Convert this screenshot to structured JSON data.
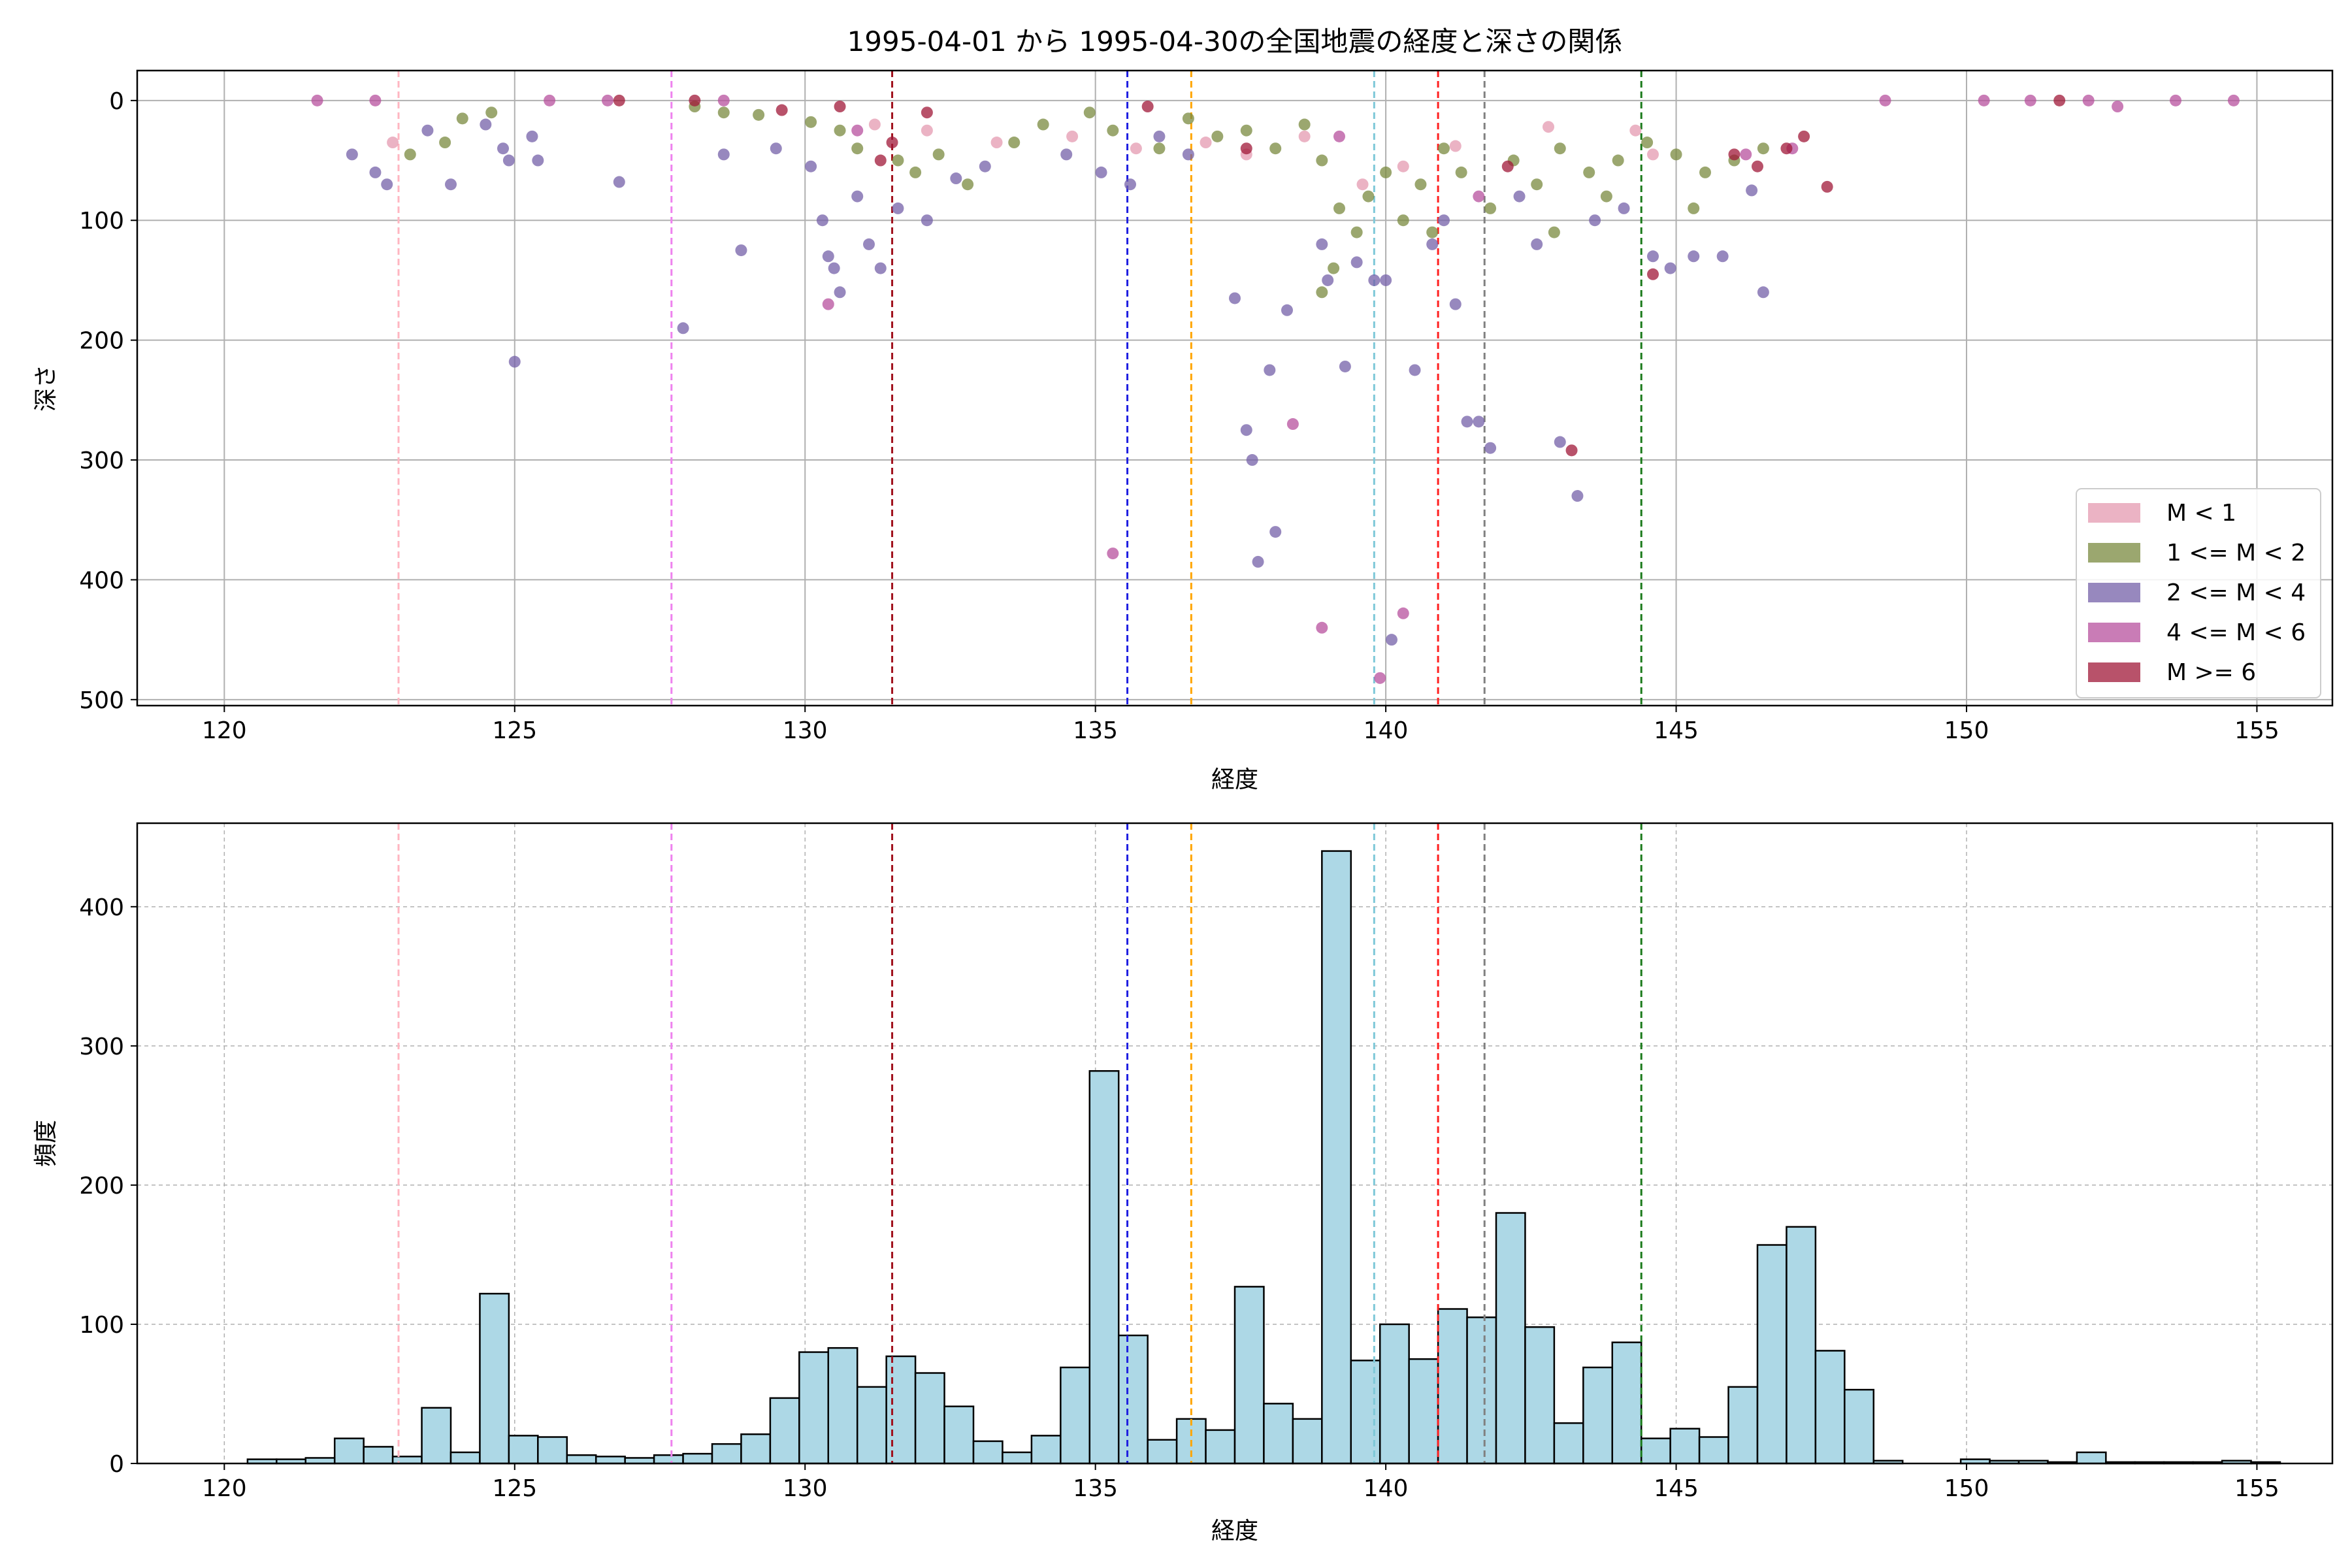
{
  "figure_title": "1995-04-01 から 1995-04-30の全国地震の経度と深さの関係",
  "colors": {
    "hist_fill": "#add8e6",
    "hist_edge": "#000000",
    "grid": "#b0b0b0"
  },
  "chart_data": [
    {
      "type": "scatter",
      "title": "1995-04-01 から 1995-04-30の全国地震の経度と深さの関係",
      "xlabel": "経度",
      "ylabel": "深さ",
      "xlim": [
        118.5,
        156.3
      ],
      "ylim": [
        505,
        -25
      ],
      "y_inverted": true,
      "xticks": [
        120,
        125,
        130,
        135,
        140,
        145,
        150,
        155
      ],
      "yticks": [
        0,
        100,
        200,
        300,
        400,
        500
      ],
      "grid": true,
      "legend_position": "lower-right",
      "vlines": [
        {
          "x": 123.0,
          "color": "#ffb6c1"
        },
        {
          "x": 127.7,
          "color": "#ee82ee"
        },
        {
          "x": 131.5,
          "color": "#a0101c"
        },
        {
          "x": 135.55,
          "color": "#1f1fe0"
        },
        {
          "x": 136.65,
          "color": "#ffa500"
        },
        {
          "x": 139.8,
          "color": "#7ec8d8"
        },
        {
          "x": 140.9,
          "color": "#ff2020"
        },
        {
          "x": 141.7,
          "color": "#808080"
        },
        {
          "x": 144.4,
          "color": "#1a7a1a"
        }
      ],
      "series": [
        {
          "name": "M < 1",
          "color": "#e49ab0",
          "points": [
            [
              122.9,
              35
            ],
            [
              131.2,
              20
            ],
            [
              132.1,
              25
            ],
            [
              134.6,
              30
            ],
            [
              135.7,
              40
            ],
            [
              136.9,
              35
            ],
            [
              137.6,
              45
            ],
            [
              139.6,
              70
            ],
            [
              140.3,
              55
            ],
            [
              141.2,
              38
            ],
            [
              142.8,
              22
            ],
            [
              144.3,
              25
            ],
            [
              144.6,
              45
            ],
            [
              133.3,
              35
            ],
            [
              138.6,
              30
            ]
          ]
        },
        {
          "name": "1 <= M < 2",
          "color": "#7a8a3f",
          "points": [
            [
              123.2,
              45
            ],
            [
              123.8,
              35
            ],
            [
              124.1,
              15
            ],
            [
              124.6,
              10
            ],
            [
              128.1,
              5
            ],
            [
              128.6,
              10
            ],
            [
              129.2,
              12
            ],
            [
              130.1,
              18
            ],
            [
              130.6,
              25
            ],
            [
              130.9,
              40
            ],
            [
              131.6,
              50
            ],
            [
              131.9,
              60
            ],
            [
              132.3,
              45
            ],
            [
              132.8,
              70
            ],
            [
              133.6,
              35
            ],
            [
              134.1,
              20
            ],
            [
              134.9,
              10
            ],
            [
              135.3,
              25
            ],
            [
              136.1,
              40
            ],
            [
              136.6,
              15
            ],
            [
              137.1,
              30
            ],
            [
              137.6,
              25
            ],
            [
              138.1,
              40
            ],
            [
              138.6,
              20
            ],
            [
              138.9,
              50
            ],
            [
              139.2,
              90
            ],
            [
              139.5,
              110
            ],
            [
              139.7,
              80
            ],
            [
              140.0,
              60
            ],
            [
              140.3,
              100
            ],
            [
              140.6,
              70
            ],
            [
              141.0,
              40
            ],
            [
              141.3,
              60
            ],
            [
              141.8,
              90
            ],
            [
              142.2,
              50
            ],
            [
              142.6,
              70
            ],
            [
              143.0,
              40
            ],
            [
              143.5,
              60
            ],
            [
              144.0,
              50
            ],
            [
              144.5,
              35
            ],
            [
              145.0,
              45
            ],
            [
              145.5,
              60
            ],
            [
              146.0,
              50
            ],
            [
              146.5,
              40
            ],
            [
              139.1,
              140
            ],
            [
              138.9,
              160
            ],
            [
              140.8,
              110
            ],
            [
              142.9,
              110
            ],
            [
              143.8,
              80
            ],
            [
              145.3,
              90
            ]
          ]
        },
        {
          "name": "2 <= M < 4",
          "color": "#7460a8",
          "points": [
            [
              122.2,
              45
            ],
            [
              122.6,
              60
            ],
            [
              122.8,
              70
            ],
            [
              123.5,
              25
            ],
            [
              123.9,
              70
            ],
            [
              124.5,
              20
            ],
            [
              124.8,
              40
            ],
            [
              124.9,
              50
            ],
            [
              125.0,
              218
            ],
            [
              125.3,
              30
            ],
            [
              125.4,
              50
            ],
            [
              126.8,
              68
            ],
            [
              127.9,
              190
            ],
            [
              128.6,
              45
            ],
            [
              128.9,
              125
            ],
            [
              129.5,
              40
            ],
            [
              130.1,
              55
            ],
            [
              130.3,
              100
            ],
            [
              130.4,
              130
            ],
            [
              130.5,
              140
            ],
            [
              130.6,
              160
            ],
            [
              130.9,
              80
            ],
            [
              131.1,
              120
            ],
            [
              131.3,
              140
            ],
            [
              131.6,
              90
            ],
            [
              132.1,
              100
            ],
            [
              132.6,
              65
            ],
            [
              133.1,
              55
            ],
            [
              134.5,
              45
            ],
            [
              135.1,
              60
            ],
            [
              135.6,
              70
            ],
            [
              136.1,
              30
            ],
            [
              136.6,
              45
            ],
            [
              137.6,
              275
            ],
            [
              137.7,
              300
            ],
            [
              138.0,
              225
            ],
            [
              138.1,
              360
            ],
            [
              138.3,
              175
            ],
            [
              138.9,
              120
            ],
            [
              139.0,
              150
            ],
            [
              139.3,
              222
            ],
            [
              139.8,
              150
            ],
            [
              140.1,
              450
            ],
            [
              140.5,
              225
            ],
            [
              140.8,
              120
            ],
            [
              141.0,
              100
            ],
            [
              141.4,
              268
            ],
            [
              141.6,
              268
            ],
            [
              141.8,
              290
            ],
            [
              142.3,
              80
            ],
            [
              142.6,
              120
            ],
            [
              143.0,
              285
            ],
            [
              143.3,
              330
            ],
            [
              143.6,
              100
            ],
            [
              144.1,
              90
            ],
            [
              144.6,
              130
            ],
            [
              144.9,
              140
            ],
            [
              145.3,
              130
            ],
            [
              145.8,
              130
            ],
            [
              146.3,
              75
            ],
            [
              146.5,
              160
            ],
            [
              137.4,
              165
            ],
            [
              137.8,
              385
            ],
            [
              139.5,
              135
            ],
            [
              140.0,
              150
            ],
            [
              141.2,
              170
            ]
          ]
        },
        {
          "name": "4 <= M < 6",
          "color": "#b7509d",
          "points": [
            [
              121.6,
              0
            ],
            [
              122.6,
              0
            ],
            [
              125.6,
              0
            ],
            [
              126.6,
              0
            ],
            [
              128.6,
              0
            ],
            [
              130.4,
              170
            ],
            [
              130.9,
              25
            ],
            [
              135.3,
              378
            ],
            [
              138.4,
              270
            ],
            [
              138.9,
              440
            ],
            [
              140.3,
              428
            ],
            [
              139.9,
              482
            ],
            [
              139.2,
              30
            ],
            [
              141.6,
              80
            ],
            [
              146.2,
              45
            ],
            [
              147.0,
              40
            ],
            [
              148.6,
              0
            ],
            [
              150.3,
              0
            ],
            [
              151.1,
              0
            ],
            [
              152.1,
              0
            ],
            [
              152.6,
              5
            ],
            [
              153.6,
              0
            ],
            [
              154.6,
              0
            ]
          ]
        },
        {
          "name": "M >= 6",
          "color": "#a01838",
          "points": [
            [
              126.8,
              0
            ],
            [
              128.1,
              0
            ],
            [
              129.6,
              8
            ],
            [
              130.6,
              5
            ],
            [
              131.3,
              50
            ],
            [
              131.5,
              35
            ],
            [
              132.1,
              10
            ],
            [
              135.9,
              5
            ],
            [
              137.6,
              40
            ],
            [
              142.1,
              55
            ],
            [
              143.2,
              292
            ],
            [
              144.6,
              145
            ],
            [
              146.0,
              45
            ],
            [
              146.4,
              55
            ],
            [
              146.9,
              40
            ],
            [
              147.2,
              30
            ],
            [
              147.6,
              72
            ],
            [
              151.6,
              0
            ]
          ]
        }
      ]
    },
    {
      "type": "bar",
      "xlabel": "経度",
      "ylabel": "頻度",
      "xlim": [
        118.5,
        156.3
      ],
      "ylim": [
        0,
        460
      ],
      "xticks": [
        120,
        125,
        130,
        135,
        140,
        145,
        150,
        155
      ],
      "yticks": [
        0,
        100,
        200,
        300,
        400
      ],
      "grid": true,
      "bin_start": 120.4,
      "bin_width": 0.5,
      "values": [
        3,
        3,
        4,
        18,
        12,
        5,
        40,
        8,
        122,
        20,
        19,
        6,
        5,
        4,
        6,
        7,
        14,
        21,
        47,
        80,
        83,
        55,
        77,
        65,
        41,
        16,
        8,
        20,
        69,
        282,
        92,
        17,
        32,
        24,
        127,
        43,
        32,
        440,
        74,
        100,
        75,
        111,
        105,
        180,
        98,
        29,
        69,
        87,
        18,
        25,
        19,
        55,
        157,
        170,
        81,
        53,
        2,
        0,
        0,
        3,
        2,
        2,
        1,
        8,
        1,
        1,
        1,
        1,
        2,
        1
      ],
      "vlines": [
        {
          "x": 123.0,
          "color": "#ffb6c1"
        },
        {
          "x": 127.7,
          "color": "#ee82ee"
        },
        {
          "x": 131.5,
          "color": "#a0101c"
        },
        {
          "x": 135.55,
          "color": "#1f1fe0"
        },
        {
          "x": 136.65,
          "color": "#ffa500"
        },
        {
          "x": 139.8,
          "color": "#7ec8d8"
        },
        {
          "x": 140.9,
          "color": "#ff2020"
        },
        {
          "x": 141.7,
          "color": "#808080"
        },
        {
          "x": 144.4,
          "color": "#1a7a1a"
        }
      ]
    }
  ]
}
